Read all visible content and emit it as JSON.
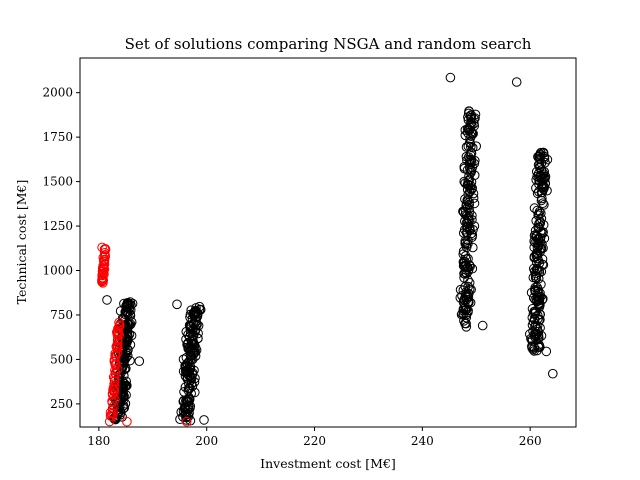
{
  "chart_data": {
    "type": "scatter",
    "title": "Set of solutions comparing NSGA and random search",
    "xlabel": "Investment cost [M€]",
    "ylabel": "Technical cost [M€]",
    "xlim": [
      176.5,
      268.5
    ],
    "ylim": [
      120,
      2195
    ],
    "x_ticks": [
      180,
      200,
      220,
      240,
      260
    ],
    "y_ticks": [
      250,
      500,
      750,
      1000,
      1250,
      1500,
      1750,
      2000
    ],
    "grid": false,
    "legend": "none",
    "marker": "open-circle",
    "colors": {
      "random": "#000000",
      "nsga": "#ff0000"
    },
    "clusters": [
      {
        "series": "random",
        "x_center": 184.5,
        "x_spread": 1.6,
        "y_top": 830,
        "y_bottom": 160,
        "slope": -0.45,
        "count": 210
      },
      {
        "series": "random",
        "x_center": 197.0,
        "x_spread": 1.6,
        "y_top": 800,
        "y_bottom": 150,
        "slope": -0.45,
        "count": 170
      },
      {
        "series": "random",
        "x_center": 248.5,
        "x_spread": 1.4,
        "y_top": 1910,
        "y_bottom": 680,
        "slope": -0.3,
        "count": 200
      },
      {
        "series": "random",
        "x_center": 261.5,
        "x_spread": 1.6,
        "y_top": 1690,
        "y_bottom": 540,
        "slope": -0.35,
        "count": 210
      },
      {
        "series": "nsga",
        "x_center": 180.9,
        "x_spread": 0.3,
        "y_top": 1130,
        "y_bottom": 930,
        "slope": -0.15,
        "count": 40
      },
      {
        "series": "nsga",
        "x_center": 183.0,
        "x_spread": 0.5,
        "y_top": 710,
        "y_bottom": 150,
        "slope": -0.35,
        "count": 60
      }
    ],
    "points": [
      {
        "series": "random",
        "x": 245.2,
        "y": 2085
      },
      {
        "series": "random",
        "x": 257.5,
        "y": 2060
      },
      {
        "series": "random",
        "x": 264.2,
        "y": 420
      },
      {
        "series": "random",
        "x": 251.2,
        "y": 690
      },
      {
        "series": "random",
        "x": 263.0,
        "y": 545
      },
      {
        "series": "random",
        "x": 194.5,
        "y": 810
      },
      {
        "series": "random",
        "x": 181.5,
        "y": 835
      },
      {
        "series": "random",
        "x": 187.5,
        "y": 490
      },
      {
        "series": "random",
        "x": 199.5,
        "y": 160
      },
      {
        "series": "nsga",
        "x": 196.3,
        "y": 150
      },
      {
        "series": "nsga",
        "x": 185.2,
        "y": 150
      },
      {
        "series": "nsga",
        "x": 180.6,
        "y": 1130
      }
    ]
  }
}
